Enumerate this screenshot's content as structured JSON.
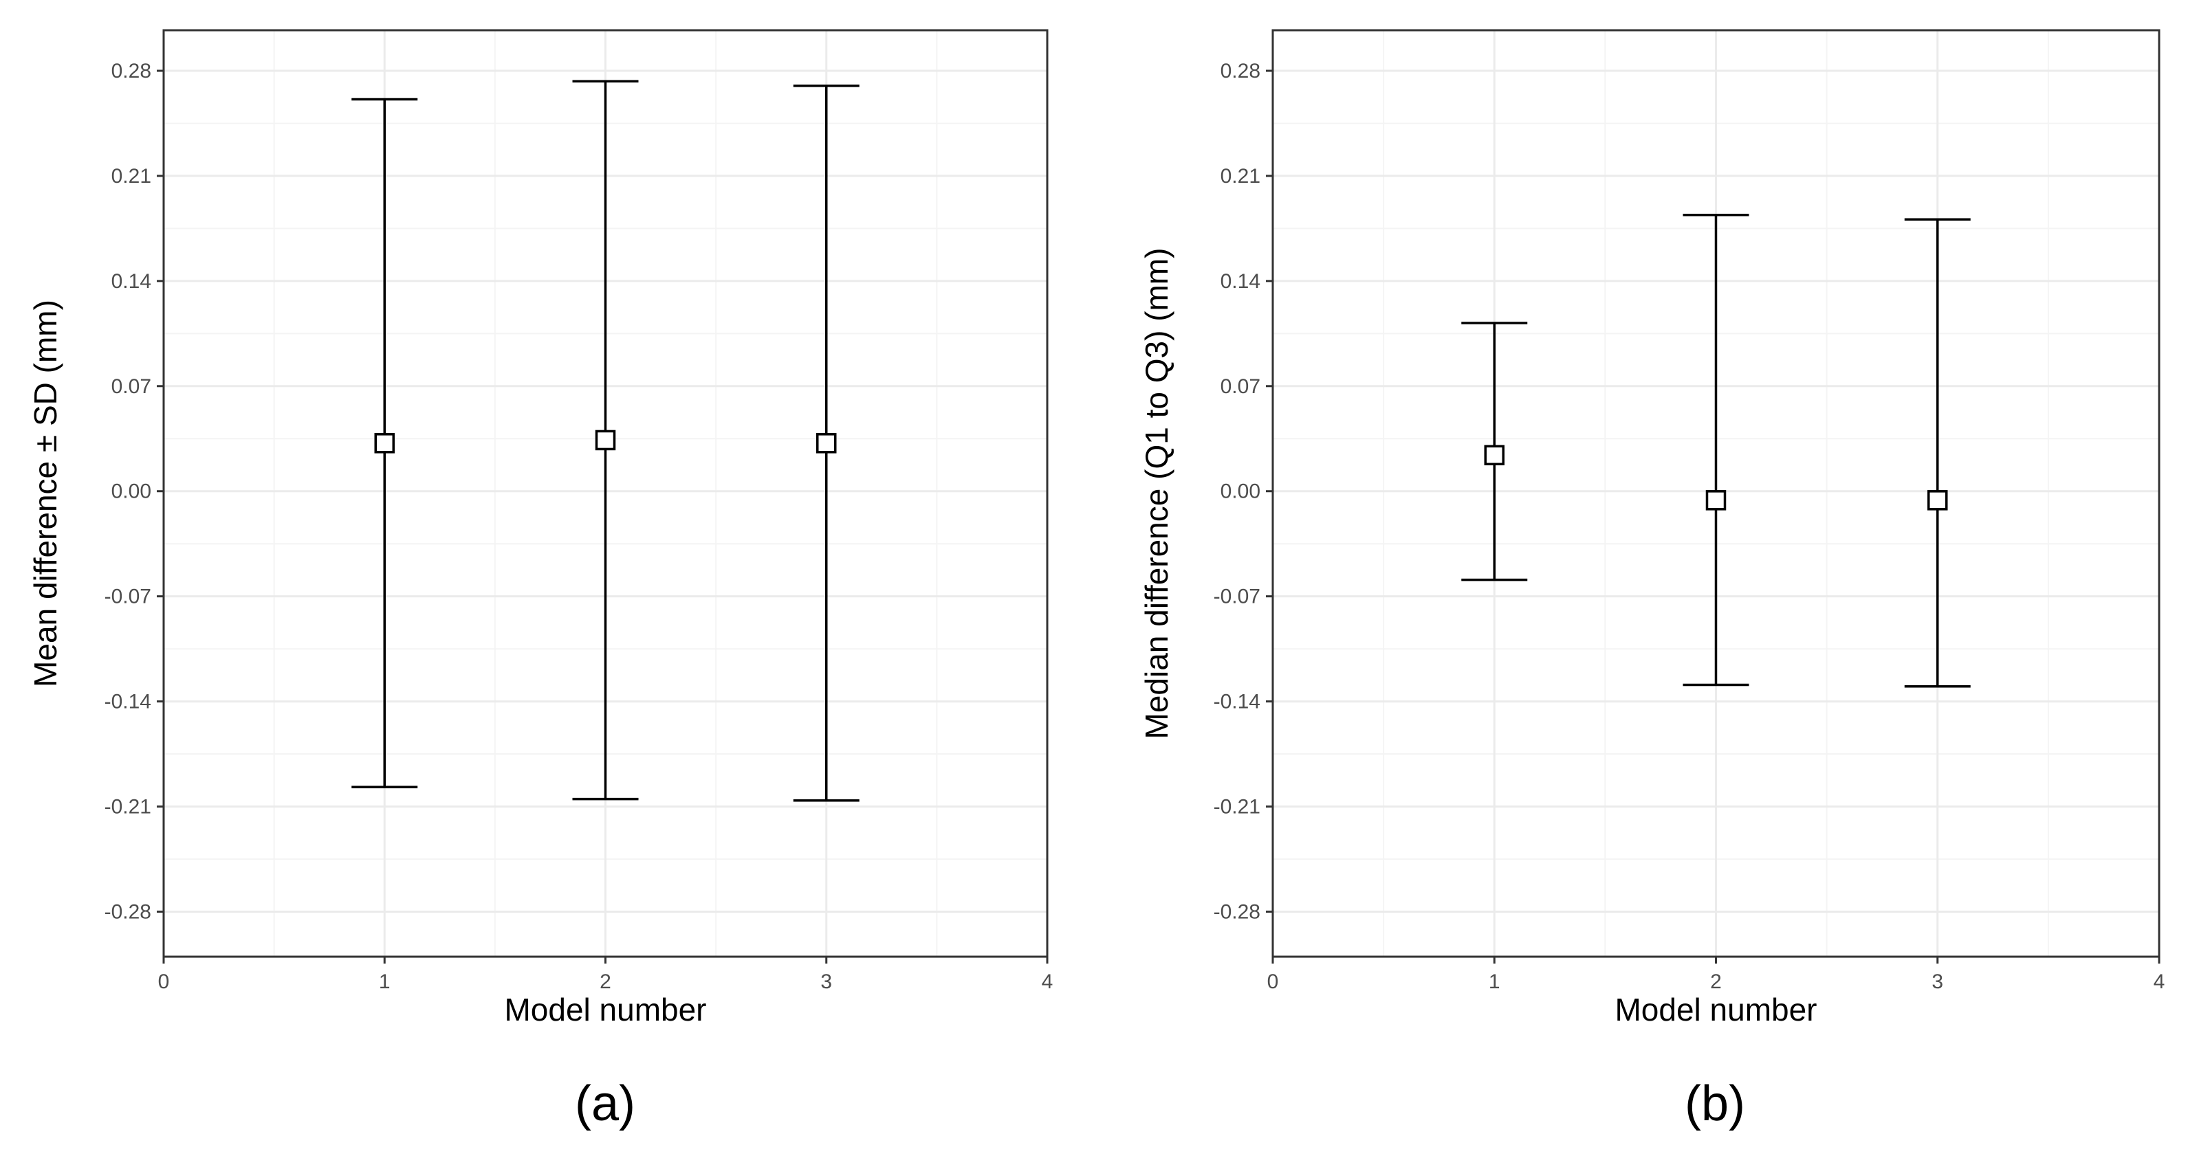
{
  "chart_data": [
    {
      "type": "errorbar",
      "panel_label": "(a)",
      "xlabel": "Model number",
      "ylabel": "Mean difference ± SD (mm)",
      "xlim": [
        0,
        4
      ],
      "ylim": [
        -0.31,
        0.307
      ],
      "x_ticks": [
        0,
        1,
        2,
        3,
        4
      ],
      "x_tick_labels": [
        "0",
        "1",
        "2",
        "3",
        "4"
      ],
      "y_ticks": [
        -0.28,
        -0.21,
        -0.14,
        -0.07,
        0.0,
        0.07,
        0.14,
        0.21,
        0.28
      ],
      "y_tick_labels": [
        "-0.28",
        "-0.21",
        "-0.14",
        "-0.07",
        "0.00",
        "0.07",
        "0.14",
        "0.21",
        "0.28"
      ],
      "grid": true,
      "points": [
        {
          "x": 1,
          "y": 0.032,
          "lower": -0.197,
          "upper": 0.261
        },
        {
          "x": 2,
          "y": 0.034,
          "lower": -0.205,
          "upper": 0.273
        },
        {
          "x": 3,
          "y": 0.032,
          "lower": -0.206,
          "upper": 0.27
        }
      ]
    },
    {
      "type": "errorbar",
      "panel_label": "(b)",
      "xlabel": "Model number",
      "ylabel": "Median difference (Q1 to Q3) (mm)",
      "xlim": [
        0,
        4
      ],
      "ylim": [
        -0.31,
        0.307
      ],
      "x_ticks": [
        0,
        1,
        2,
        3,
        4
      ],
      "x_tick_labels": [
        "0",
        "1",
        "2",
        "3",
        "4"
      ],
      "y_ticks": [
        -0.28,
        -0.21,
        -0.14,
        -0.07,
        0.0,
        0.07,
        0.14,
        0.21,
        0.28
      ],
      "y_tick_labels": [
        "-0.28",
        "-0.21",
        "-0.14",
        "-0.07",
        "0.00",
        "0.07",
        "0.14",
        "0.21",
        "0.28"
      ],
      "grid": true,
      "points": [
        {
          "x": 1,
          "y": 0.024,
          "lower": -0.059,
          "upper": 0.112
        },
        {
          "x": 2,
          "y": -0.006,
          "lower": -0.129,
          "upper": 0.184
        },
        {
          "x": 3,
          "y": -0.006,
          "lower": -0.13,
          "upper": 0.181
        }
      ]
    }
  ]
}
